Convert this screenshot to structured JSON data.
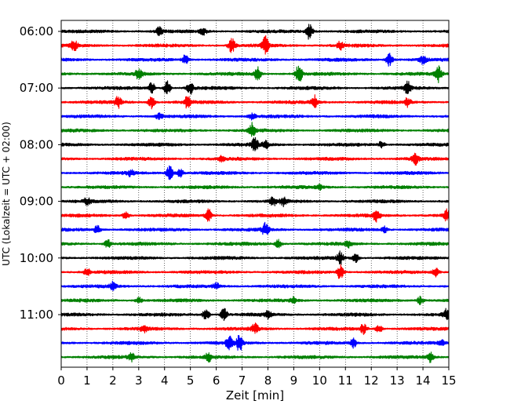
{
  "chart_data": {
    "type": "line",
    "title": "",
    "xlabel": "Zeit  [min]",
    "ylabel": "UTC (Lokalzeit = UTC + 02:00)",
    "xlim": [
      0,
      15
    ],
    "x_ticks": [
      0,
      1,
      2,
      3,
      4,
      5,
      6,
      7,
      8,
      9,
      10,
      11,
      12,
      13,
      14,
      15
    ],
    "y_tick_labels": [
      "06:00",
      "07:00",
      "08:00",
      "09:00",
      "10:00",
      "11:00"
    ],
    "grid": "vertical dotted lines at each minute",
    "colors": [
      "#000000",
      "#ff0000",
      "#0000ff",
      "#008000"
    ],
    "traces": [
      {
        "start": "06:00",
        "color": "#000000",
        "bursts": [
          {
            "t": 9.6,
            "amp": 10
          },
          {
            "t": 3.8,
            "amp": 5
          },
          {
            "t": 5.5,
            "amp": 4
          }
        ]
      },
      {
        "start": "06:15",
        "color": "#ff0000",
        "bursts": [
          {
            "t": 0.5,
            "amp": 6
          },
          {
            "t": 6.6,
            "amp": 9
          },
          {
            "t": 7.9,
            "amp": 12
          },
          {
            "t": 10.8,
            "amp": 5
          }
        ]
      },
      {
        "start": "06:30",
        "color": "#0000ff",
        "bursts": [
          {
            "t": 4.8,
            "amp": 6
          },
          {
            "t": 12.7,
            "amp": 8
          },
          {
            "t": 14.0,
            "amp": 5
          }
        ]
      },
      {
        "start": "06:45",
        "color": "#008000",
        "bursts": [
          {
            "t": 3.0,
            "amp": 6
          },
          {
            "t": 7.6,
            "amp": 9
          },
          {
            "t": 9.2,
            "amp": 12
          },
          {
            "t": 14.6,
            "amp": 10
          }
        ]
      },
      {
        "start": "07:00",
        "color": "#000000",
        "bursts": [
          {
            "t": 3.5,
            "amp": 7
          },
          {
            "t": 4.1,
            "amp": 9
          },
          {
            "t": 5.0,
            "amp": 7
          },
          {
            "t": 13.4,
            "amp": 8
          }
        ]
      },
      {
        "start": "07:15",
        "color": "#ff0000",
        "bursts": [
          {
            "t": 2.2,
            "amp": 7
          },
          {
            "t": 3.5,
            "amp": 8
          },
          {
            "t": 4.9,
            "amp": 8
          },
          {
            "t": 9.8,
            "amp": 8
          },
          {
            "t": 13.4,
            "amp": 5
          }
        ]
      },
      {
        "start": "07:30",
        "color": "#0000ff",
        "bursts": [
          {
            "t": 3.8,
            "amp": 4
          },
          {
            "t": 7.4,
            "amp": 4
          }
        ]
      },
      {
        "start": "07:45",
        "color": "#008000",
        "bursts": [
          {
            "t": 7.4,
            "amp": 10
          }
        ]
      },
      {
        "start": "08:00",
        "color": "#000000",
        "bursts": [
          {
            "t": 7.5,
            "amp": 8
          },
          {
            "t": 7.9,
            "amp": 5
          },
          {
            "t": 12.4,
            "amp": 4
          }
        ]
      },
      {
        "start": "08:15",
        "color": "#ff0000",
        "bursts": [
          {
            "t": 13.7,
            "amp": 7
          },
          {
            "t": 6.2,
            "amp": 3
          }
        ]
      },
      {
        "start": "08:30",
        "color": "#0000ff",
        "bursts": [
          {
            "t": 2.7,
            "amp": 4
          },
          {
            "t": 4.2,
            "amp": 10
          },
          {
            "t": 4.6,
            "amp": 5
          }
        ]
      },
      {
        "start": "08:45",
        "color": "#008000",
        "bursts": [
          {
            "t": 10.0,
            "amp": 3
          }
        ]
      },
      {
        "start": "09:00",
        "color": "#000000",
        "bursts": [
          {
            "t": 8.2,
            "amp": 5
          },
          {
            "t": 8.6,
            "amp": 5
          },
          {
            "t": 1.0,
            "amp": 4
          }
        ]
      },
      {
        "start": "09:15",
        "color": "#ff0000",
        "bursts": [
          {
            "t": 2.5,
            "amp": 5
          },
          {
            "t": 5.7,
            "amp": 8
          },
          {
            "t": 12.2,
            "amp": 8
          },
          {
            "t": 14.9,
            "amp": 7
          }
        ]
      },
      {
        "start": "09:30",
        "color": "#0000ff",
        "bursts": [
          {
            "t": 1.4,
            "amp": 5
          },
          {
            "t": 7.9,
            "amp": 8
          },
          {
            "t": 12.5,
            "amp": 4
          }
        ]
      },
      {
        "start": "09:45",
        "color": "#008000",
        "bursts": [
          {
            "t": 1.8,
            "amp": 5
          },
          {
            "t": 8.4,
            "amp": 5
          },
          {
            "t": 11.1,
            "amp": 4
          }
        ]
      },
      {
        "start": "10:00",
        "color": "#000000",
        "bursts": [
          {
            "t": 10.8,
            "amp": 8
          },
          {
            "t": 11.4,
            "amp": 6
          }
        ]
      },
      {
        "start": "10:15",
        "color": "#ff0000",
        "bursts": [
          {
            "t": 1.0,
            "amp": 5
          },
          {
            "t": 10.8,
            "amp": 10
          },
          {
            "t": 14.5,
            "amp": 6
          }
        ]
      },
      {
        "start": "10:30",
        "color": "#0000ff",
        "bursts": [
          {
            "t": 2.0,
            "amp": 5
          },
          {
            "t": 6.0,
            "amp": 4
          }
        ]
      },
      {
        "start": "10:45",
        "color": "#008000",
        "bursts": [
          {
            "t": 3.0,
            "amp": 4
          },
          {
            "t": 9.0,
            "amp": 4
          },
          {
            "t": 13.9,
            "amp": 5
          }
        ]
      },
      {
        "start": "11:00",
        "color": "#000000",
        "bursts": [
          {
            "t": 5.6,
            "amp": 7
          },
          {
            "t": 6.3,
            "amp": 8
          },
          {
            "t": 8.0,
            "amp": 4
          },
          {
            "t": 14.9,
            "amp": 6
          }
        ]
      },
      {
        "start": "11:15",
        "color": "#ff0000",
        "bursts": [
          {
            "t": 3.2,
            "amp": 4
          },
          {
            "t": 7.5,
            "amp": 6
          },
          {
            "t": 11.7,
            "amp": 6
          },
          {
            "t": 12.3,
            "amp": 5
          }
        ]
      },
      {
        "start": "11:30",
        "color": "#0000ff",
        "bursts": [
          {
            "t": 6.5,
            "amp": 8
          },
          {
            "t": 6.9,
            "amp": 10
          },
          {
            "t": 11.3,
            "amp": 6
          },
          {
            "t": 14.7,
            "amp": 4
          }
        ]
      },
      {
        "start": "11:45",
        "color": "#008000",
        "bursts": [
          {
            "t": 2.7,
            "amp": 5
          },
          {
            "t": 5.7,
            "amp": 5
          },
          {
            "t": 14.3,
            "amp": 7
          }
        ]
      }
    ]
  }
}
